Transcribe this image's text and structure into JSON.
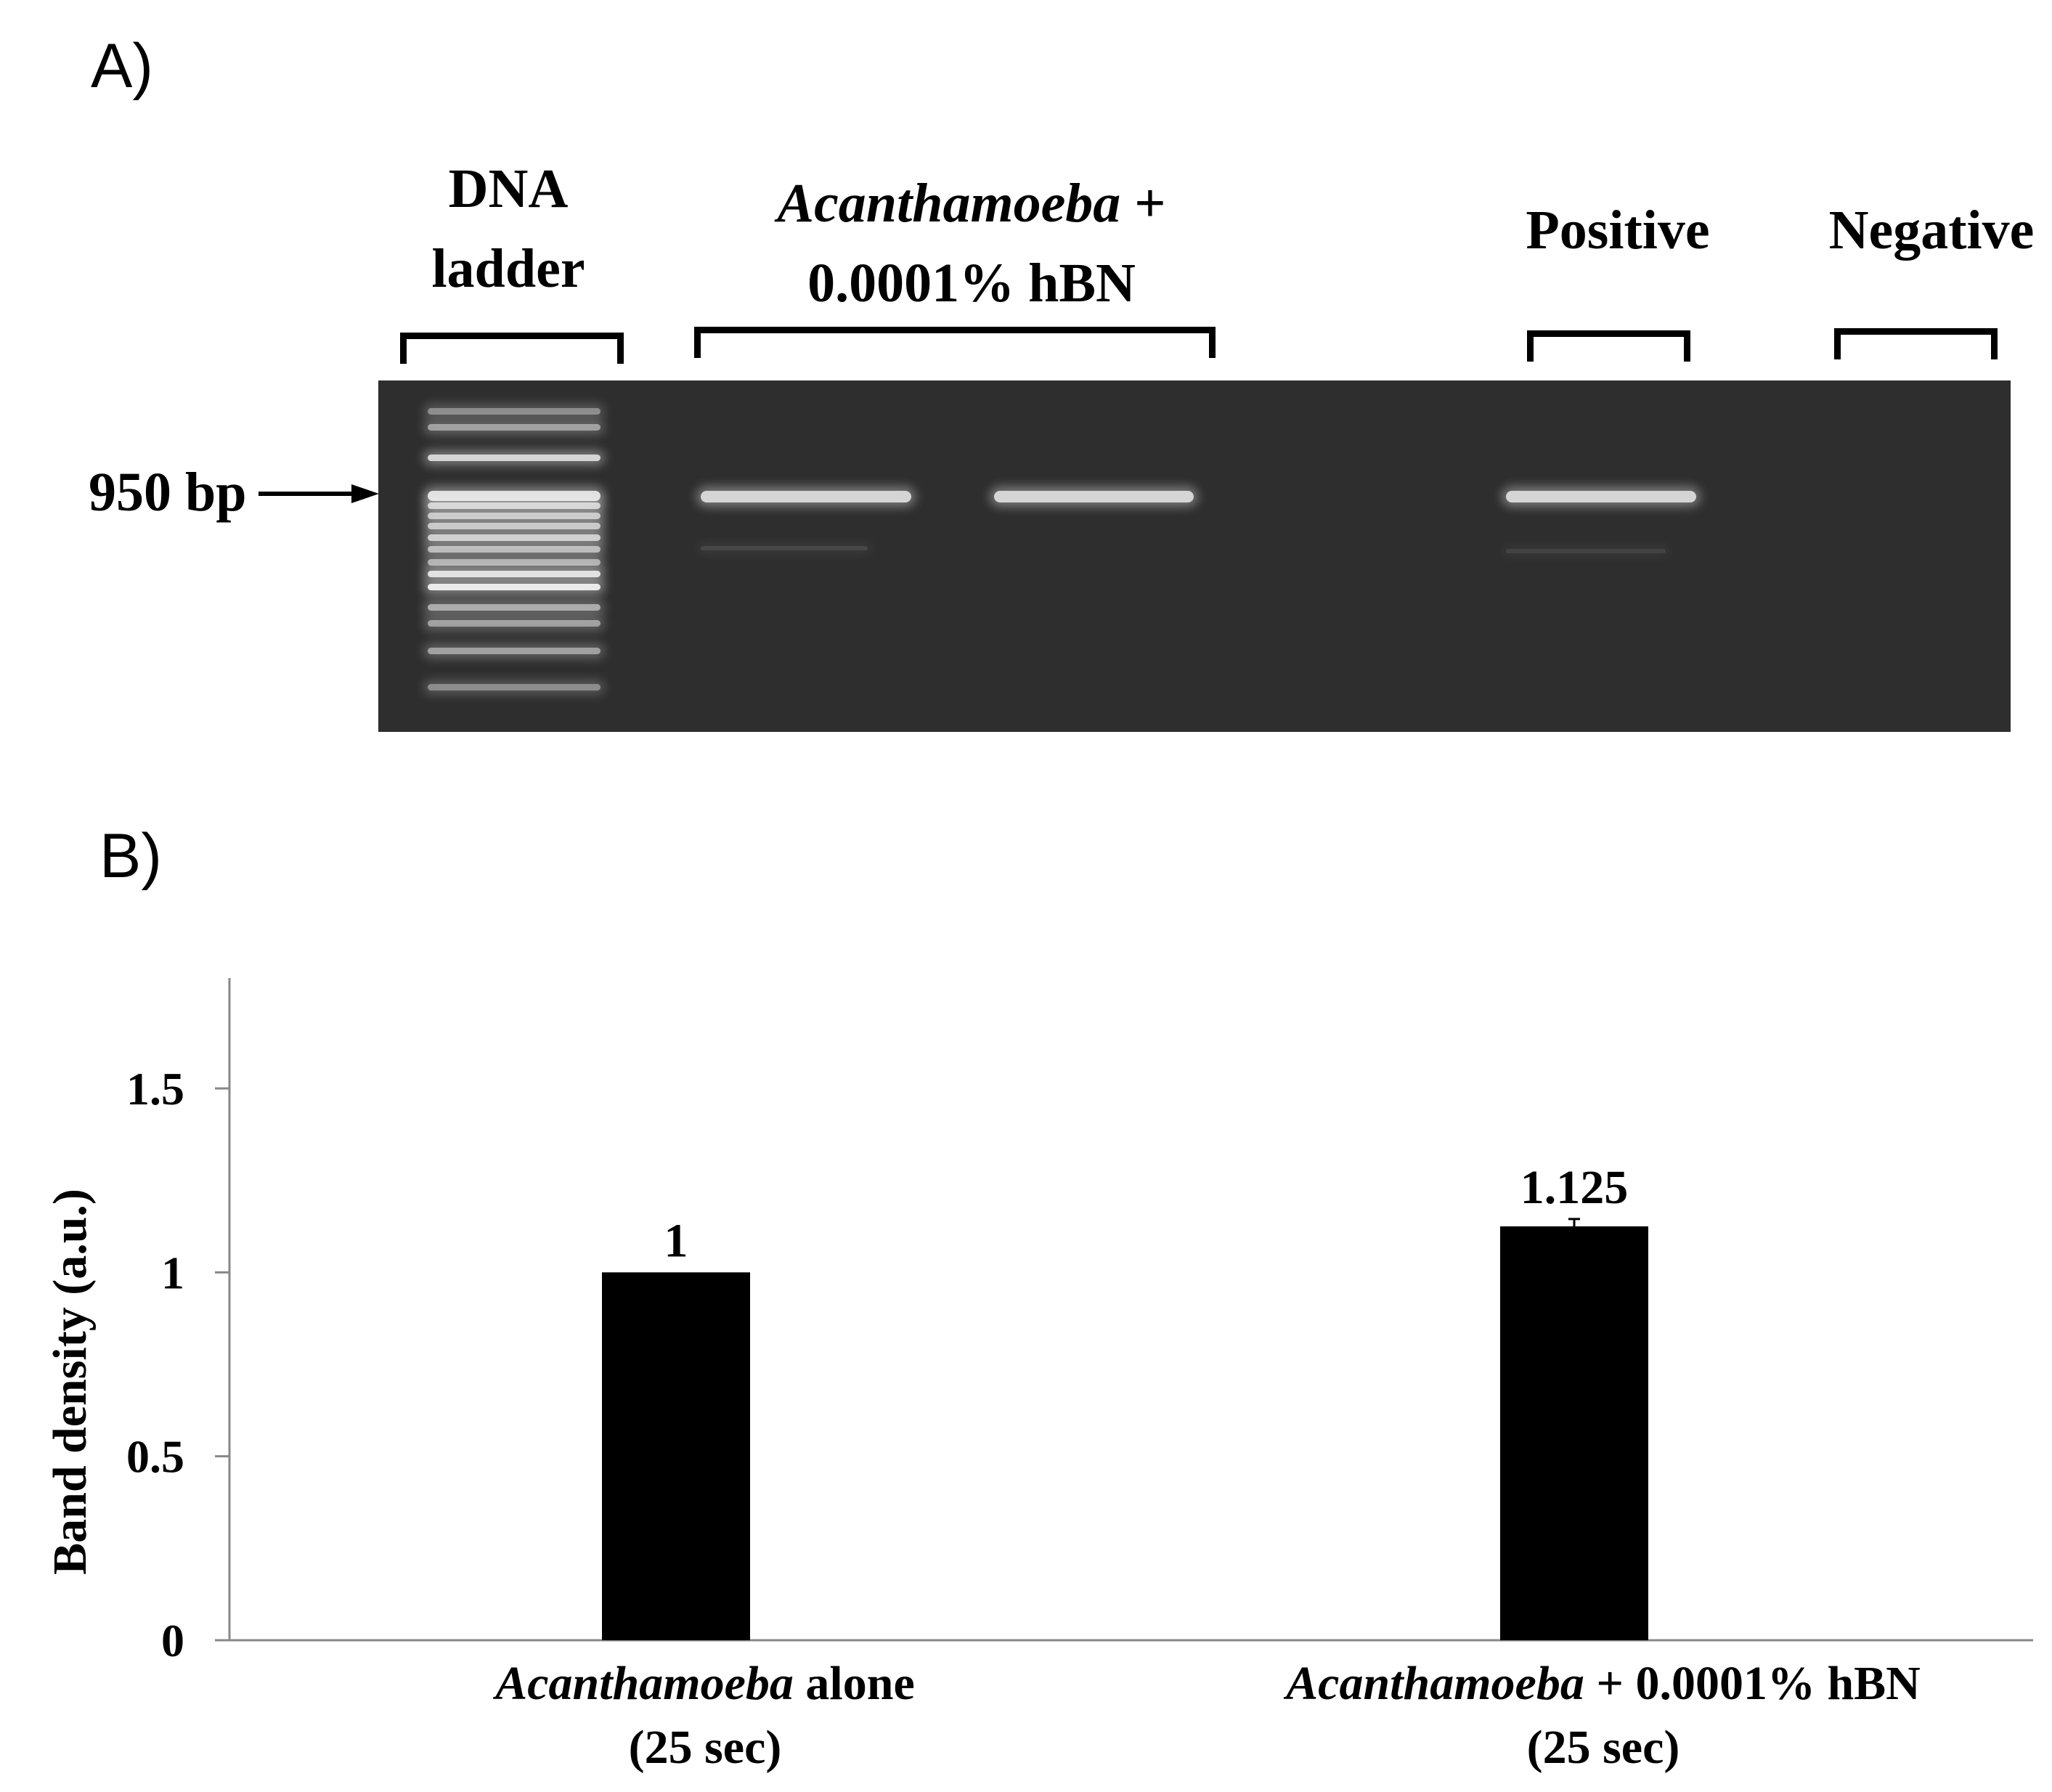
{
  "panel_a": {
    "label": "A)",
    "lanes": {
      "ladder_line1": "DNA",
      "ladder_line2": "ladder",
      "treated_line1_italic": "Acanthamoeba",
      "treated_line1_rest": " +",
      "treated_line2": "0.0001% hBN",
      "positive": "Positive",
      "negative": "Negative"
    },
    "marker": "950 bp"
  },
  "panel_b": {
    "label": "B)"
  },
  "chart_data": {
    "type": "bar",
    "ylabel": "Band density (a.u.)",
    "ylim": [
      0,
      1.8
    ],
    "yticks": [
      0,
      0.5,
      1,
      1.5
    ],
    "ytick_labels": [
      "0",
      "0.5",
      "1",
      "1.5"
    ],
    "categories": [
      {
        "italic": "Acanthamoeba",
        "rest": " alone",
        "line2": "(25 sec)"
      },
      {
        "italic": "Acanthamoeba",
        "rest": " + 0.0001% hBN",
        "line2": "(25 sec)"
      }
    ],
    "values": [
      1,
      1.125
    ],
    "value_labels": [
      "1",
      "1.125"
    ],
    "errors": [
      0,
      0.02
    ],
    "bar_color": "#000000",
    "grid": false
  }
}
